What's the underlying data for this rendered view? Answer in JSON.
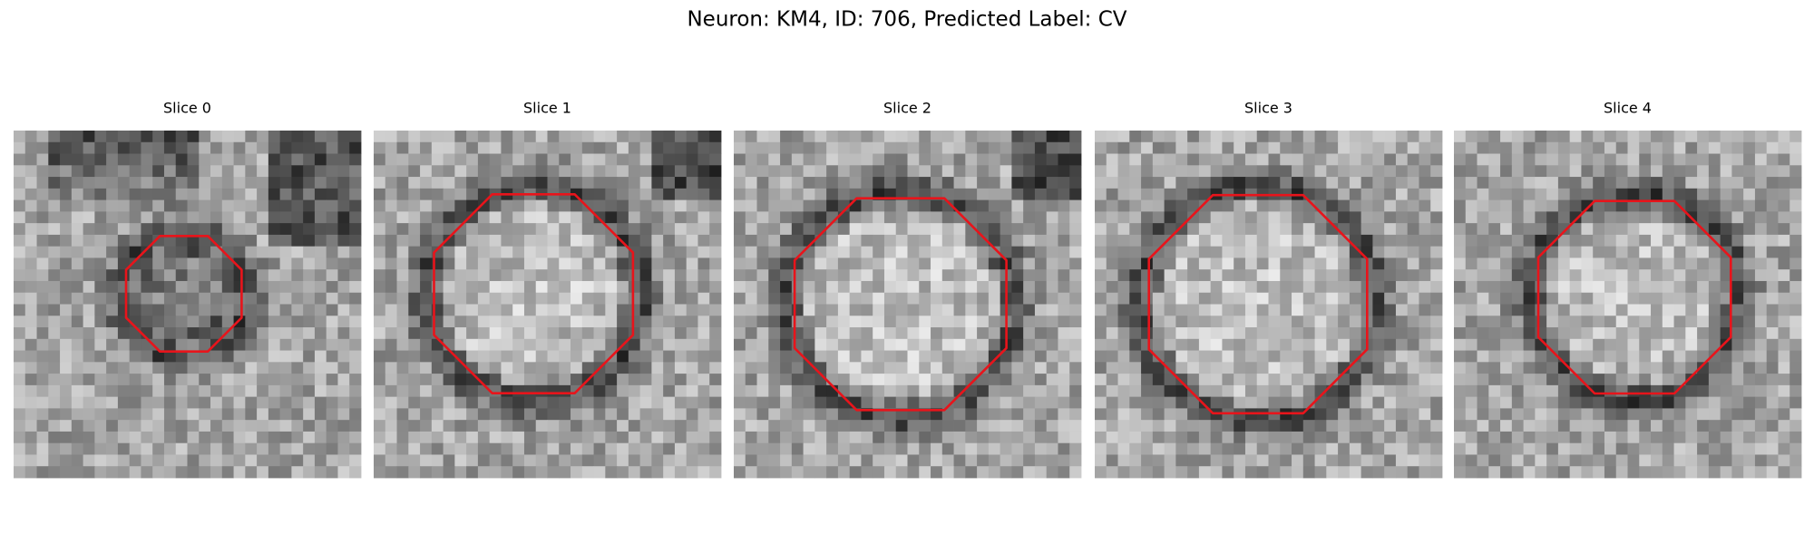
{
  "header": {
    "title": "Neuron: KM4, ID: 706, Predicted Label: CV"
  },
  "panels": [
    {
      "title": "Slice 0"
    },
    {
      "title": "Slice 1"
    },
    {
      "title": "Slice 2"
    },
    {
      "title": "Slice 3"
    },
    {
      "title": "Slice 4"
    }
  ]
}
